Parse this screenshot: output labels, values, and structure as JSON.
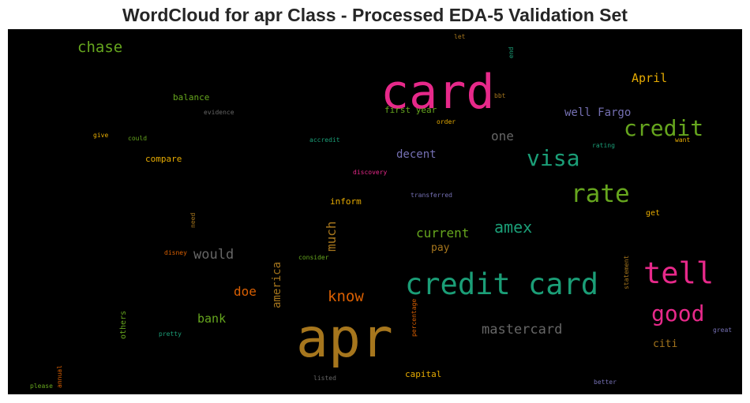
{
  "chart_data": {
    "type": "wordcloud",
    "title": "WordCloud for apr Class - Processed EDA-5 Validation Set",
    "background": "#000000",
    "colormap": "Dark2",
    "words": [
      {
        "text": "apr",
        "color": "#a6761d"
      },
      {
        "text": "card",
        "color": "#e7298a"
      },
      {
        "text": "credit card",
        "color": "#1b9e77"
      },
      {
        "text": "tell",
        "color": "#e7298a"
      },
      {
        "text": "rate",
        "color": "#66a61e"
      },
      {
        "text": "credit",
        "color": "#66a61e"
      },
      {
        "text": "visa",
        "color": "#1b9e77"
      },
      {
        "text": "good",
        "color": "#e7298a"
      },
      {
        "text": "chase",
        "color": "#66a61e"
      },
      {
        "text": "amex",
        "color": "#1b9e77"
      },
      {
        "text": "know",
        "color": "#d95f02"
      },
      {
        "text": "mastercard",
        "color": "#666666"
      },
      {
        "text": "would",
        "color": "#666666"
      },
      {
        "text": "much",
        "color": "#a6761d"
      },
      {
        "text": "current",
        "color": "#66a61e"
      },
      {
        "text": "April",
        "color": "#e6ab02"
      },
      {
        "text": "one",
        "color": "#666666"
      },
      {
        "text": "doe",
        "color": "#d95f02"
      },
      {
        "text": "bank",
        "color": "#66a61e"
      },
      {
        "text": "america",
        "color": "#a6761d"
      },
      {
        "text": "well Fargo",
        "color": "#7570b3"
      },
      {
        "text": "decent",
        "color": "#7570b3"
      },
      {
        "text": "citi",
        "color": "#a6761d"
      },
      {
        "text": "pay",
        "color": "#a6761d"
      },
      {
        "text": "first year",
        "color": "#66a61e"
      },
      {
        "text": "balance",
        "color": "#66a61e"
      },
      {
        "text": "inform",
        "color": "#e6ab02"
      },
      {
        "text": "compare",
        "color": "#e6ab02"
      },
      {
        "text": "capital",
        "color": "#e6ab02"
      },
      {
        "text": "others",
        "color": "#66a61e"
      },
      {
        "text": "get",
        "color": "#e6ab02"
      },
      {
        "text": "evidence",
        "color": "#666666"
      },
      {
        "text": "give",
        "color": "#e6ab02"
      },
      {
        "text": "could",
        "color": "#66a61e"
      },
      {
        "text": "accredit",
        "color": "#1b9e77"
      },
      {
        "text": "order",
        "color": "#e6ab02"
      },
      {
        "text": "bbt",
        "color": "#a6761d"
      },
      {
        "text": "let",
        "color": "#a6761d"
      },
      {
        "text": "end",
        "color": "#1b9e77"
      },
      {
        "text": "rating",
        "color": "#1b9e77"
      },
      {
        "text": "want",
        "color": "#e6ab02"
      },
      {
        "text": "discovery",
        "color": "#e7298a"
      },
      {
        "text": "transferred",
        "color": "#7570b3"
      },
      {
        "text": "need",
        "color": "#a6761d"
      },
      {
        "text": "disney",
        "color": "#d95f02"
      },
      {
        "text": "consider",
        "color": "#66a61e"
      },
      {
        "text": "statement",
        "color": "#a6761d"
      },
      {
        "text": "percentage",
        "color": "#d95f02"
      },
      {
        "text": "pretty",
        "color": "#1b9e77"
      },
      {
        "text": "great",
        "color": "#7570b3"
      },
      {
        "text": "annual",
        "color": "#d95f02"
      },
      {
        "text": "please",
        "color": "#66a61e"
      },
      {
        "text": "listed",
        "color": "#666666"
      },
      {
        "text": "better",
        "color": "#7570b3"
      }
    ]
  }
}
